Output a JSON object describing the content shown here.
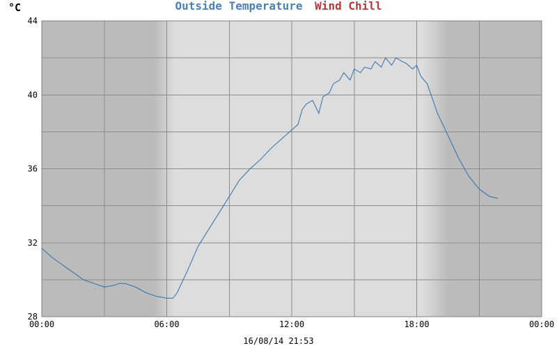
{
  "colors": {
    "temperature": "#2f6fae",
    "wind_chill": "#b03a3a",
    "night": "#bbbbbb",
    "day": "#dddddd"
  },
  "chart_data": {
    "type": "line",
    "title_parts": [
      "Outside Temperature",
      "Wind Chill"
    ],
    "ylabel": "°C",
    "xlabel": "",
    "timestamp": "16/08/14 21:53",
    "x_ticks": [
      "00:00",
      "06:00",
      "12:00",
      "18:00",
      "00:00"
    ],
    "y_ticks": [
      "28",
      "32",
      "36",
      "40",
      "44"
    ],
    "xlim": [
      0,
      24
    ],
    "ylim": [
      28,
      44
    ],
    "grid": true,
    "legend": "top-center",
    "daylight": {
      "sunrise": 6.0,
      "sunset": 19.5
    },
    "series": [
      {
        "name": "Outside Temperature",
        "x": [
          0.0,
          0.5,
          1.0,
          1.5,
          2.0,
          2.5,
          3.0,
          3.5,
          3.7,
          4.0,
          4.5,
          5.0,
          5.5,
          6.0,
          6.3,
          6.5,
          7.0,
          7.5,
          8.0,
          8.5,
          9.0,
          9.5,
          10.0,
          10.5,
          11.0,
          11.5,
          12.0,
          12.3,
          12.5,
          12.7,
          13.0,
          13.3,
          13.5,
          13.8,
          14.0,
          14.3,
          14.5,
          14.8,
          15.0,
          15.3,
          15.5,
          15.8,
          16.0,
          16.3,
          16.5,
          16.8,
          17.0,
          17.3,
          17.5,
          17.8,
          18.0,
          18.2,
          18.5,
          19.0,
          19.5,
          20.0,
          20.5,
          21.0,
          21.5,
          21.9
        ],
        "values": [
          31.7,
          31.2,
          30.8,
          30.4,
          30.0,
          29.8,
          29.6,
          29.7,
          29.8,
          29.8,
          29.6,
          29.3,
          29.1,
          29.0,
          29.0,
          29.3,
          30.5,
          31.8,
          32.7,
          33.6,
          34.5,
          35.4,
          36.0,
          36.5,
          37.1,
          37.6,
          38.1,
          38.4,
          39.2,
          39.5,
          39.7,
          39.0,
          39.9,
          40.1,
          40.6,
          40.8,
          41.2,
          40.8,
          41.4,
          41.2,
          41.5,
          41.4,
          41.8,
          41.5,
          42.0,
          41.6,
          42.0,
          41.8,
          41.7,
          41.4,
          41.6,
          41.0,
          40.6,
          39.0,
          37.8,
          36.6,
          35.6,
          34.9,
          34.5,
          34.4
        ]
      }
    ]
  }
}
